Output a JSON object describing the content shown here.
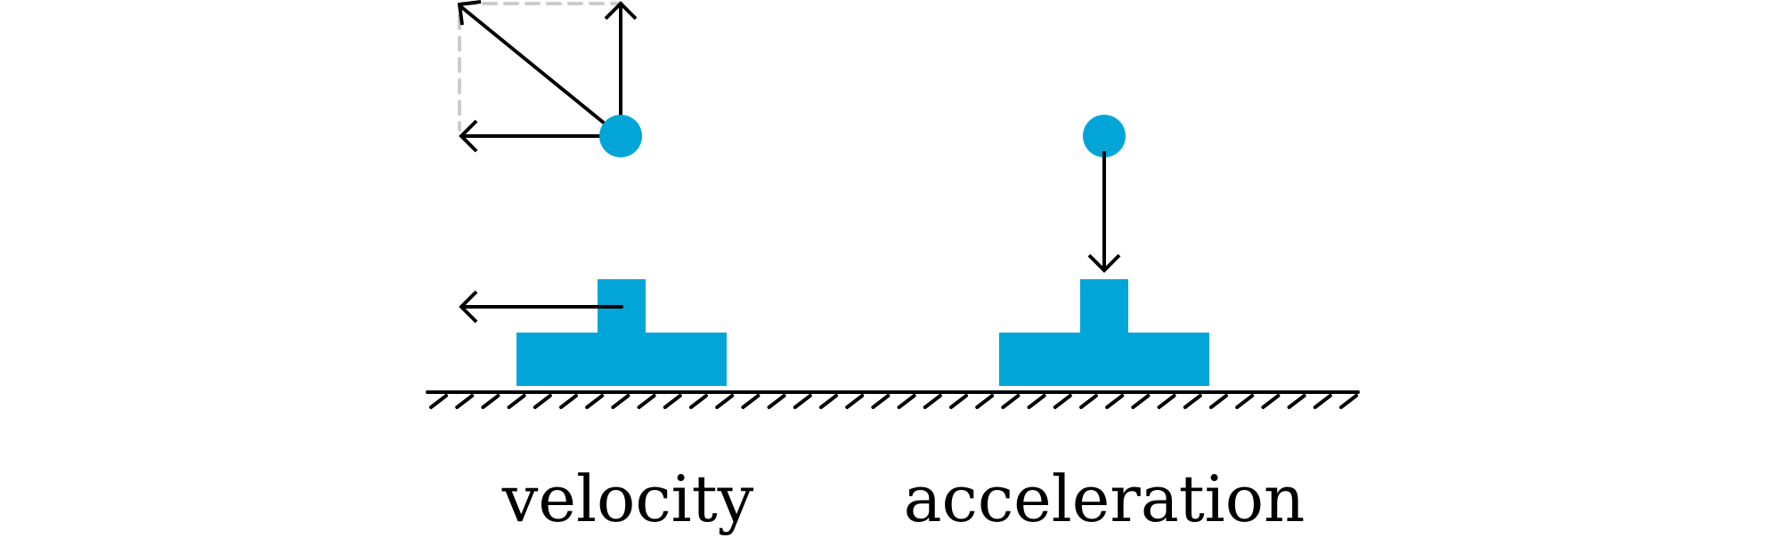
{
  "labels": {
    "left": "velocity",
    "right": "acceleration"
  },
  "colors": {
    "body": "#02a5d8",
    "ink": "#000000",
    "guide": "#cccccc",
    "background": "#ffffff"
  }
}
